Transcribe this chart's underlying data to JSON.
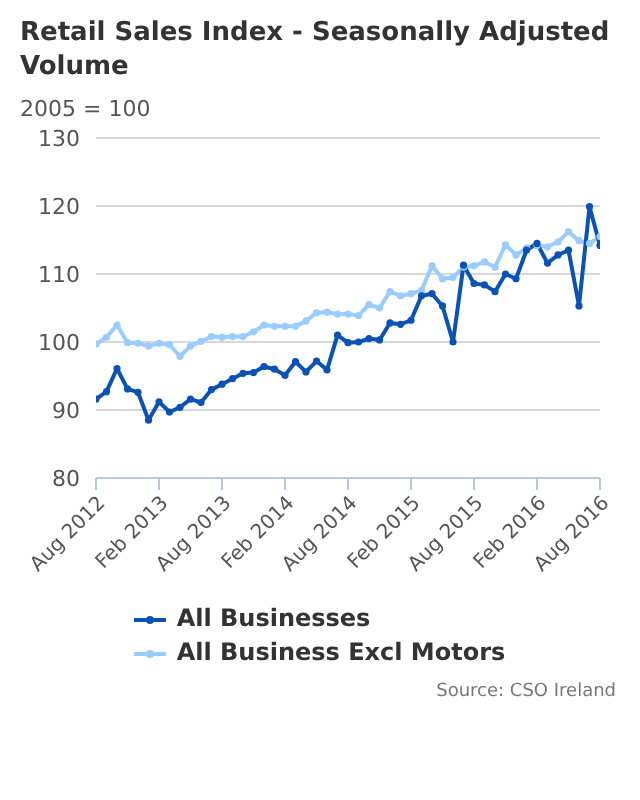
{
  "chart_data": {
    "type": "line",
    "title": "Retail Sales Index - Seasonally Adjusted Volume",
    "ylabel": "2005 = 100",
    "x": [
      "2012-08",
      "2012-09",
      "2012-10",
      "2012-11",
      "2012-12",
      "2013-01",
      "2013-02",
      "2013-03",
      "2013-04",
      "2013-05",
      "2013-06",
      "2013-07",
      "2013-08",
      "2013-09",
      "2013-10",
      "2013-11",
      "2013-12",
      "2014-01",
      "2014-02",
      "2014-03",
      "2014-04",
      "2014-05",
      "2014-06",
      "2014-07",
      "2014-08",
      "2014-09",
      "2014-10",
      "2014-11",
      "2014-12",
      "2015-01",
      "2015-02",
      "2015-03",
      "2015-04",
      "2015-05",
      "2015-06",
      "2015-07",
      "2015-08",
      "2015-09",
      "2015-10",
      "2015-11",
      "2015-12",
      "2016-01",
      "2016-02",
      "2016-03",
      "2016-04",
      "2016-05",
      "2016-06",
      "2016-07",
      "2016-08"
    ],
    "series": [
      {
        "name": "All Businesses",
        "color": "#0a52b5",
        "values": [
          91.6,
          92.7,
          96.1,
          93.1,
          92.6,
          88.5,
          91.2,
          89.7,
          90.4,
          91.6,
          91.1,
          93.0,
          93.8,
          94.6,
          95.4,
          95.5,
          96.4,
          96.0,
          95.1,
          97.1,
          95.6,
          97.2,
          95.9,
          101.0,
          99.9,
          100.0,
          100.5,
          100.3,
          102.8,
          102.6,
          103.2,
          106.8,
          107.1,
          105.3,
          100.0,
          111.3,
          108.6,
          108.4,
          107.4,
          110.0,
          109.3,
          113.5,
          114.5,
          111.6,
          112.8,
          113.5,
          105.3,
          119.9,
          114.2
        ]
      },
      {
        "name": "All Business Excl Motors",
        "color": "#99ccff",
        "values": [
          99.7,
          100.7,
          102.5,
          99.9,
          99.8,
          99.4,
          99.8,
          99.6,
          97.9,
          99.4,
          100.1,
          100.8,
          100.7,
          100.8,
          100.8,
          101.5,
          102.5,
          102.3,
          102.3,
          102.3,
          103.1,
          104.3,
          104.4,
          104.1,
          104.1,
          103.9,
          105.5,
          105.0,
          107.4,
          106.8,
          107.1,
          107.6,
          111.2,
          109.3,
          109.5,
          111.0,
          111.2,
          111.8,
          111.0,
          114.3,
          112.8,
          113.8,
          114.2,
          114.0,
          114.7,
          116.2,
          114.9,
          114.5,
          115.5
        ]
      }
    ],
    "xlim": [
      "2012-08",
      "2016-08"
    ],
    "xticks": [
      {
        "value": "2012-08",
        "label": "Aug 2012"
      },
      {
        "value": "2013-02",
        "label": "Feb 2013"
      },
      {
        "value": "2013-08",
        "label": "Aug 2013"
      },
      {
        "value": "2014-02",
        "label": "Feb 2014"
      },
      {
        "value": "2014-08",
        "label": "Aug 2014"
      },
      {
        "value": "2015-02",
        "label": "Feb 2015"
      },
      {
        "value": "2015-08",
        "label": "Aug 2015"
      },
      {
        "value": "2016-02",
        "label": "Feb 2016"
      },
      {
        "value": "2016-08",
        "label": "Aug 2016"
      }
    ],
    "ylim": [
      80,
      130
    ],
    "yticks": [
      80,
      90,
      100,
      110,
      120,
      130
    ],
    "grid": "y",
    "legend": "bottom",
    "marker": "circle",
    "line_style": "solid",
    "annotations": [
      "Source: CSO Ireland"
    ]
  }
}
